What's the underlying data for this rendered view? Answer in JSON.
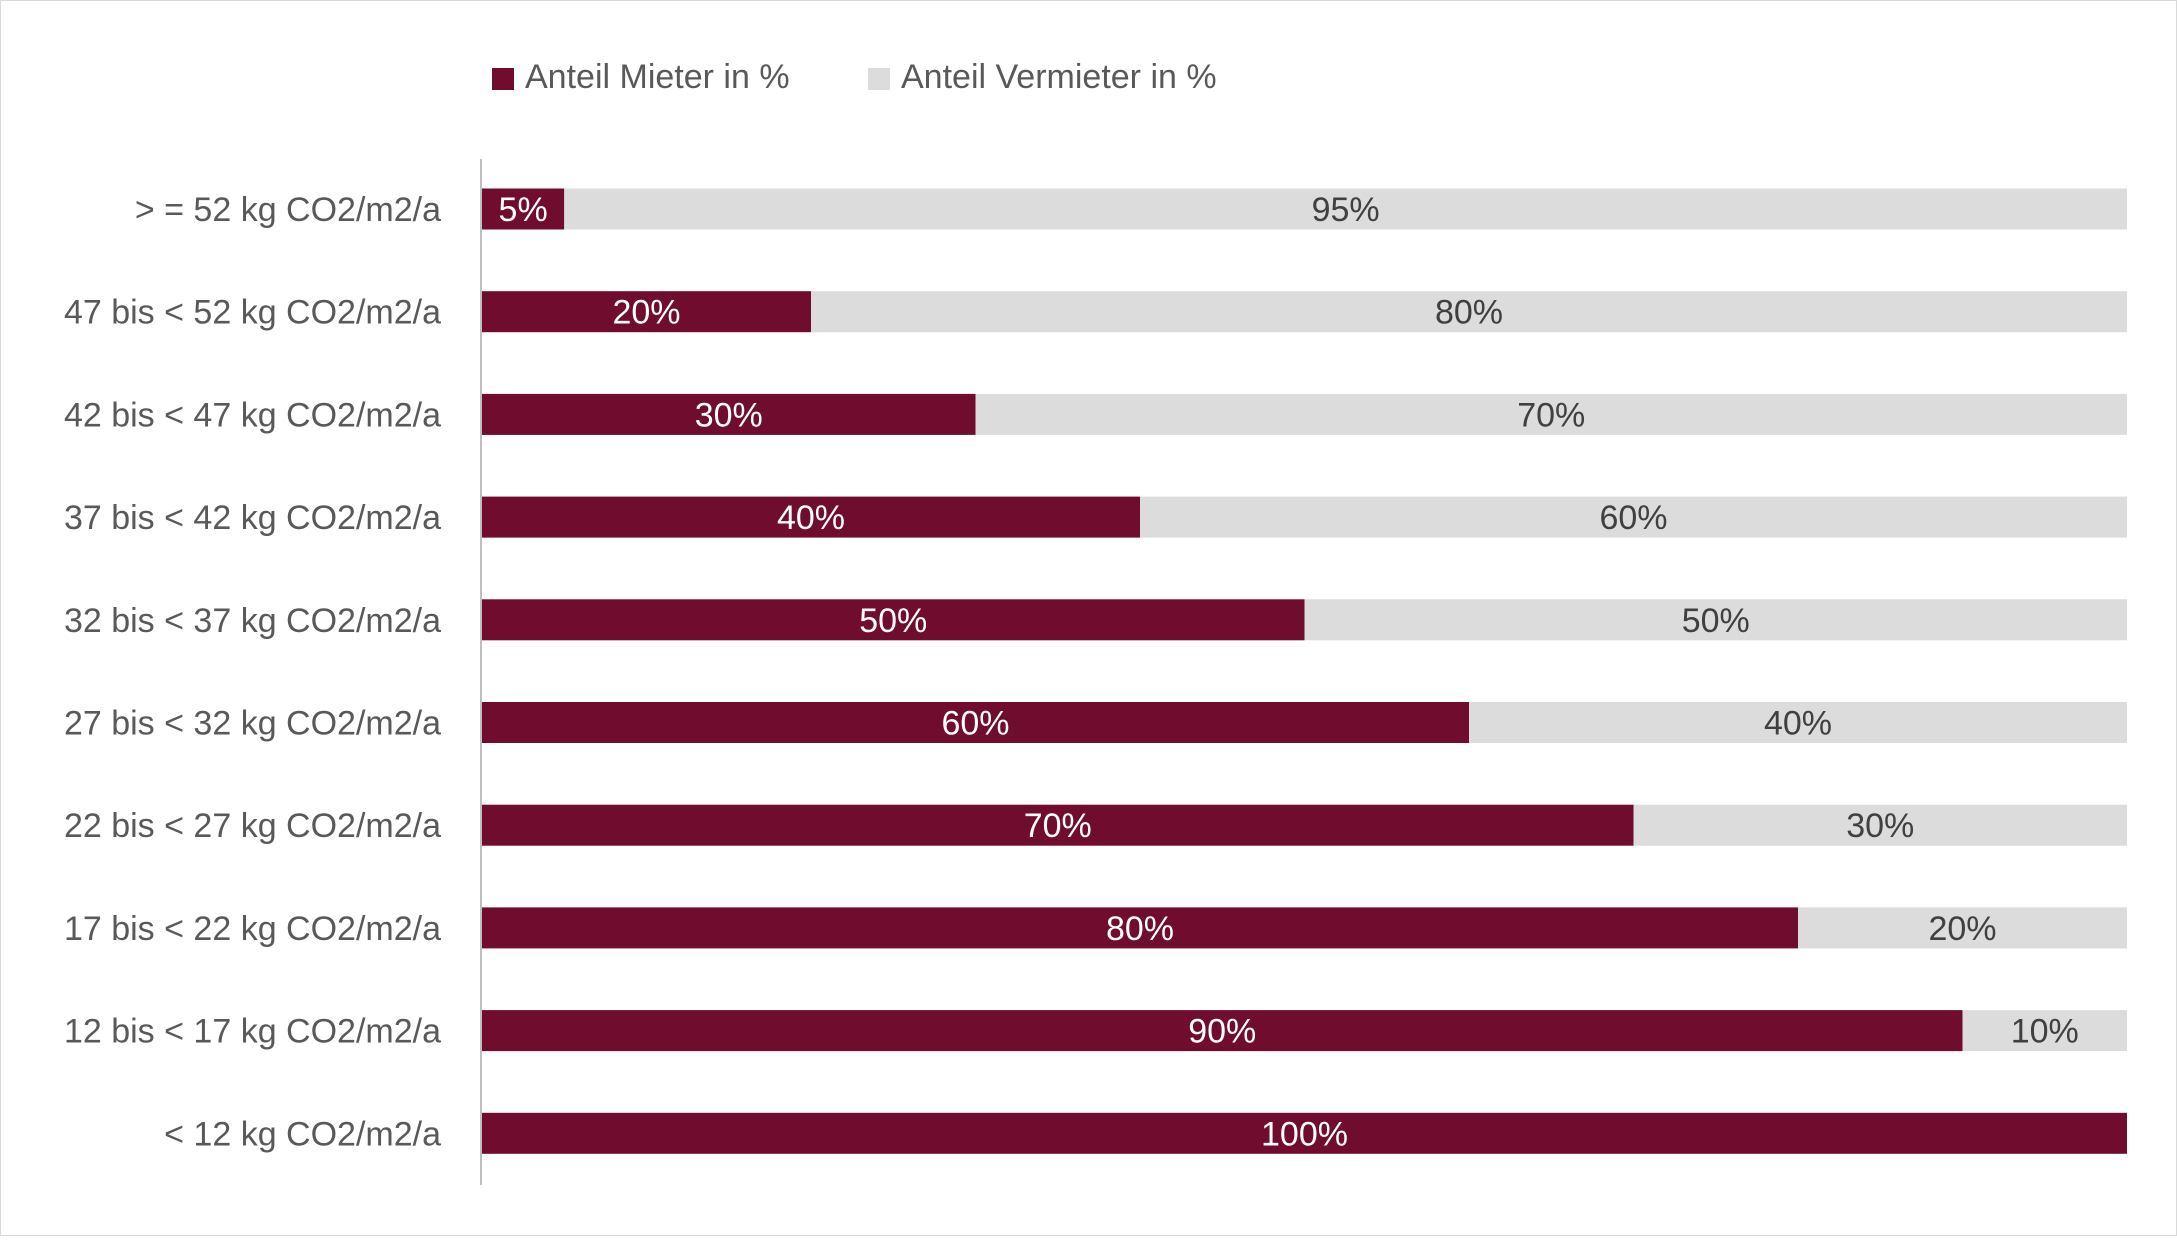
{
  "chart_data": {
    "type": "bar",
    "orientation": "horizontal",
    "stacked": "percent",
    "categories": [
      "> = 52 kg CO2/m2/a",
      "47 bis < 52 kg CO2/m2/a",
      "42 bis < 47 kg CO2/m2/a",
      "37 bis < 42 kg CO2/m2/a",
      "32 bis < 37 kg CO2/m2/a",
      "27 bis < 32 kg CO2/m2/a",
      "22 bis < 27 kg CO2/m2/a",
      "17 bis < 22 kg CO2/m2/a",
      "12 bis < 17 kg CO2/m2/a",
      "< 12 kg CO2/m2/a"
    ],
    "series": [
      {
        "name": "Anteil Mieter in %",
        "color": "#700c2e",
        "label_color": "#ffffff",
        "values": [
          5,
          20,
          30,
          40,
          50,
          60,
          70,
          80,
          90,
          100
        ],
        "labels": [
          "5%",
          "20%",
          "30%",
          "40%",
          "50%",
          "60%",
          "70%",
          "80%",
          "90%",
          "100%"
        ]
      },
      {
        "name": "Anteil Vermieter in %",
        "color": "#dcdcdc",
        "label_color": "#404040",
        "values": [
          95,
          80,
          70,
          60,
          50,
          40,
          30,
          20,
          10,
          0
        ],
        "labels": [
          "95%",
          "80%",
          "70%",
          "60%",
          "50%",
          "40%",
          "30%",
          "20%",
          "10%",
          ""
        ]
      }
    ],
    "title": "",
    "xlabel": "",
    "ylabel": "",
    "xlim": [
      0,
      100
    ],
    "grid": false,
    "legend": "top"
  }
}
